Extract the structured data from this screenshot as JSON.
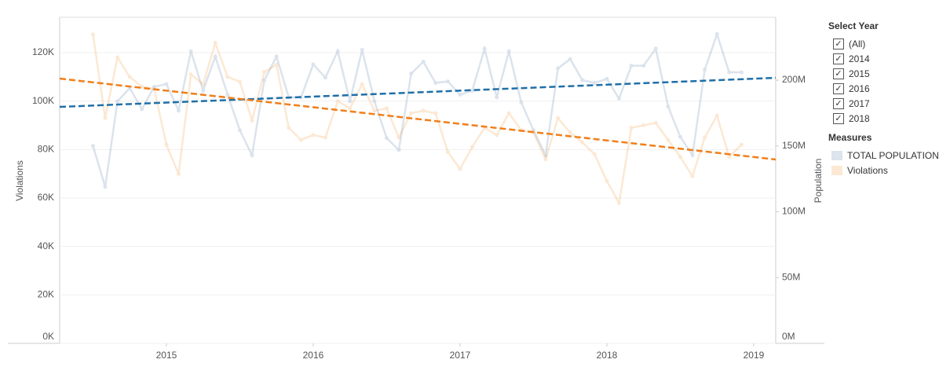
{
  "chart_data": {
    "type": "line",
    "y_label": "Violations",
    "y2_label": "Population",
    "x": [
      2014.5,
      2014.583,
      2014.667,
      2014.75,
      2014.833,
      2014.917,
      2015,
      2015.083,
      2015.167,
      2015.25,
      2015.333,
      2015.417,
      2015.5,
      2015.583,
      2015.667,
      2015.75,
      2015.833,
      2015.917,
      2016,
      2016.083,
      2016.167,
      2016.25,
      2016.333,
      2016.417,
      2016.5,
      2016.583,
      2016.667,
      2016.75,
      2016.833,
      2016.917,
      2017,
      2017.083,
      2017.167,
      2017.25,
      2017.333,
      2017.417,
      2017.5,
      2017.583,
      2017.667,
      2017.75,
      2017.833,
      2017.917,
      2018,
      2018.083,
      2018.167,
      2018.25,
      2018.333,
      2018.417,
      2018.5,
      2018.583,
      2018.667,
      2018.75,
      2018.833,
      2018.917
    ],
    "series": [
      {
        "name": "TOTAL POPULATION",
        "color": "#4e79a7",
        "axis": "y2",
        "values": [
          150000000,
          119000000,
          184000000,
          194000000,
          178000000,
          195000000,
          197000000,
          177000000,
          222000000,
          192000000,
          218000000,
          189000000,
          162000000,
          143000000,
          200000000,
          218000000,
          187000000,
          187000000,
          212000000,
          202000000,
          222000000,
          184000000,
          223000000,
          184000000,
          156000000,
          147000000,
          205000000,
          214000000,
          198000000,
          199000000,
          189000000,
          192000000,
          224000000,
          187000000,
          222000000,
          183000000,
          162000000,
          143000000,
          209000000,
          216000000,
          200000000,
          198000000,
          201000000,
          186000000,
          211000000,
          211000000,
          224000000,
          180000000,
          157000000,
          143000000,
          208000000,
          235000000,
          206000000,
          206000000
        ]
      },
      {
        "name": "Violations",
        "color": "#f28e2b",
        "values": [
          127500,
          93000,
          118000,
          110000,
          106000,
          105000,
          82000,
          70000,
          111000,
          107000,
          124000,
          110000,
          108000,
          92000,
          112000,
          115000,
          89000,
          84000,
          86000,
          85000,
          100000,
          97000,
          107000,
          96000,
          97000,
          85000,
          95000,
          96000,
          95000,
          79000,
          72000,
          81000,
          89000,
          86000,
          95000,
          88000,
          87000,
          76000,
          93000,
          87000,
          83000,
          78000,
          67000,
          58000,
          89000,
          90000,
          91000,
          84000,
          77000,
          69000,
          85000,
          94000,
          77000,
          82000
        ]
      }
    ],
    "trend_lines": [
      {
        "color": "#1f6fa8",
        "axis": "y2",
        "x": [
          2014.273,
          2019.15
        ],
        "values": [
          179700000,
          201800000
        ]
      },
      {
        "color": "#f07f1a",
        "x": [
          2014.273,
          2019.15
        ],
        "values": [
          109300,
          75900
        ]
      }
    ],
    "xlim": [
      2014.273,
      2019.15
    ],
    "xticks": [
      2015,
      2016,
      2017,
      2018,
      2019
    ],
    "ylim": [
      0,
      134600
    ],
    "yticks": [
      {
        "value": 0,
        "label": "0K"
      },
      {
        "value": 20000,
        "label": "20K"
      },
      {
        "value": 40000,
        "label": "40K"
      },
      {
        "value": 60000,
        "label": "60K"
      },
      {
        "value": 80000,
        "label": "80K"
      },
      {
        "value": 100000,
        "label": "100K"
      },
      {
        "value": 120000,
        "label": "120K"
      }
    ],
    "y2lim": [
      0,
      247800000
    ],
    "y2ticks": [
      {
        "value": 0,
        "label": "0M"
      },
      {
        "value": 50000000,
        "label": "50M"
      },
      {
        "value": 100000000,
        "label": "100M"
      },
      {
        "value": 150000000,
        "label": "150M"
      },
      {
        "value": 200000000,
        "label": "200M"
      }
    ],
    "grid": true,
    "line_opacity": 0.2
  },
  "filter": {
    "title": "Select Year",
    "options": [
      "(All)",
      "2014",
      "2015",
      "2016",
      "2017",
      "2018"
    ]
  },
  "measures_title": "Measures"
}
